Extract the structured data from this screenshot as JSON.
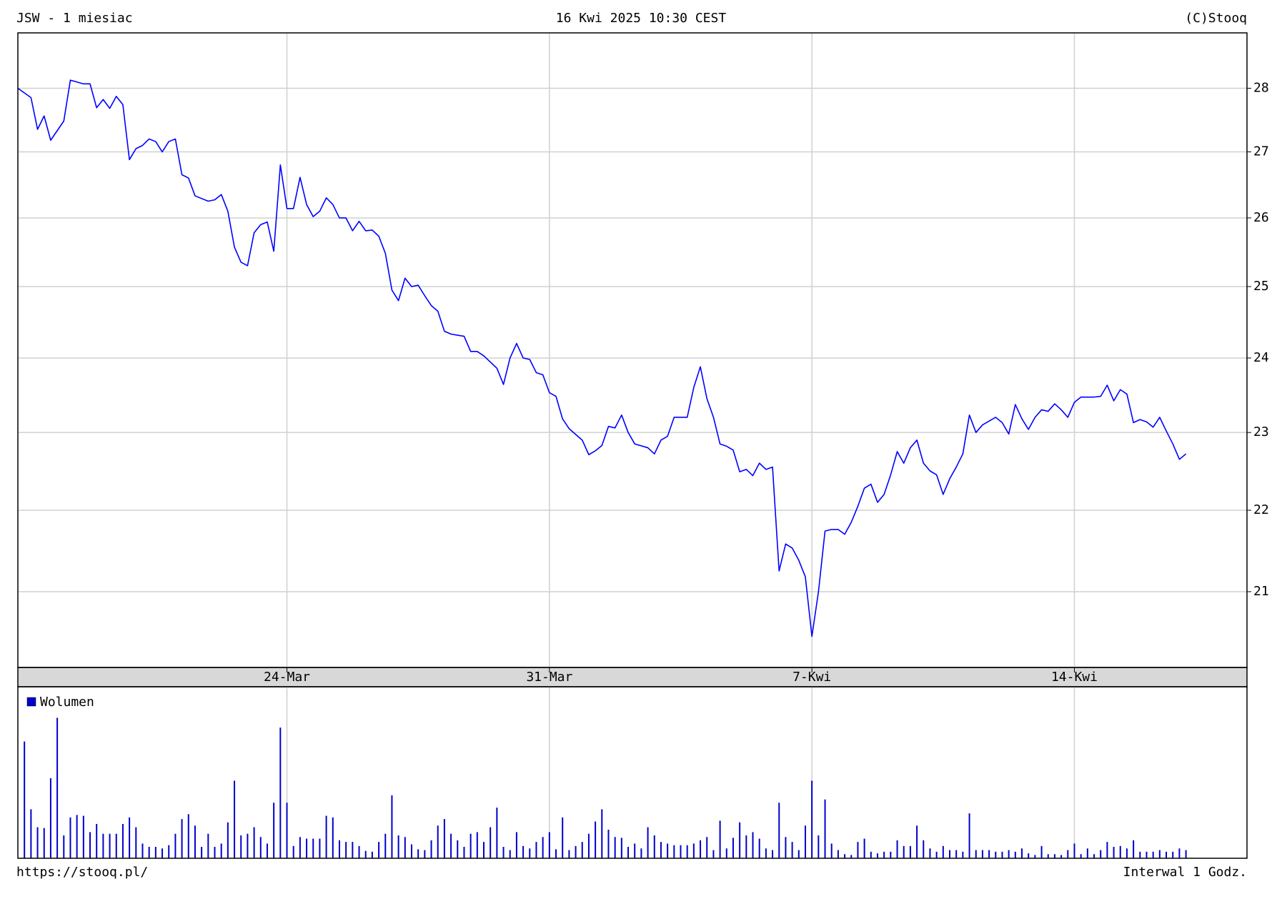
{
  "chart_data": [
    {
      "type": "line",
      "title": "JSW - 1 miesiac",
      "subtitle": "16 Kwi 2025 10:30 CEST",
      "credit": "(C)Stooq",
      "color": "#0000ff",
      "log_scale": true,
      "grid": true,
      "xlim": [
        0,
        187.3
      ],
      "xticks": [
        {
          "value": 41,
          "label": "24-Mar"
        },
        {
          "value": 81,
          "label": "31-Mar"
        },
        {
          "value": 121,
          "label": "7-Kwi"
        },
        {
          "value": 161,
          "label": "14-Kwi"
        }
      ],
      "ylim": [
        20.11,
        28.9
      ],
      "yticks": [
        21,
        22,
        23,
        24,
        25,
        26,
        27,
        28
      ],
      "x": [
        0,
        2,
        3,
        4,
        5,
        7,
        8,
        10,
        11,
        12,
        13,
        14,
        15,
        16,
        17,
        18,
        19,
        20,
        21,
        22,
        23,
        24,
        25,
        26,
        27,
        29,
        30,
        31,
        32,
        33,
        34,
        35,
        36,
        37,
        38,
        39,
        40,
        41,
        42,
        43,
        44,
        45,
        46,
        47,
        48,
        49,
        50,
        51,
        52,
        53,
        54,
        55,
        56,
        57,
        58,
        59,
        60,
        61,
        62,
        63,
        64,
        65,
        66,
        68,
        69,
        70,
        71,
        73,
        74,
        75,
        76,
        77,
        78,
        79,
        80,
        81,
        82,
        83,
        84,
        86,
        87,
        88,
        89,
        90,
        91,
        92,
        93,
        94,
        96,
        97,
        98,
        99,
        100,
        102,
        103,
        104,
        105,
        106,
        107,
        108,
        109,
        110,
        111,
        112,
        113,
        114,
        115,
        116,
        117,
        118,
        119,
        120,
        121,
        122,
        123,
        124,
        125,
        126,
        127,
        128,
        129,
        130,
        131,
        132,
        133,
        134,
        135,
        136,
        137,
        138,
        139,
        140,
        141,
        142,
        143,
        144,
        145,
        146,
        147,
        149,
        150,
        151,
        152,
        153,
        154,
        155,
        156,
        157,
        158,
        159,
        160,
        161,
        162,
        164,
        165,
        166,
        167,
        168,
        169,
        170,
        171,
        172,
        173,
        174,
        175,
        176,
        177,
        178
      ],
      "values": [
        28.0,
        27.85,
        27.35,
        27.56,
        27.18,
        27.48,
        28.13,
        28.07,
        28.07,
        27.69,
        27.82,
        27.68,
        27.87,
        27.74,
        26.88,
        27.05,
        27.1,
        27.2,
        27.16,
        27.0,
        27.16,
        27.2,
        26.65,
        26.6,
        26.33,
        26.25,
        26.27,
        26.35,
        26.1,
        25.57,
        25.35,
        25.3,
        25.78,
        25.9,
        25.94,
        25.51,
        26.8,
        26.14,
        26.14,
        26.61,
        26.2,
        26.02,
        26.1,
        26.3,
        26.2,
        26.0,
        26.0,
        25.81,
        25.95,
        25.81,
        25.82,
        25.73,
        25.48,
        24.95,
        24.8,
        25.12,
        25.0,
        25.02,
        24.87,
        24.73,
        24.65,
        24.37,
        24.33,
        24.3,
        24.09,
        24.09,
        24.03,
        23.86,
        23.64,
        24.0,
        24.2,
        24.0,
        23.98,
        23.8,
        23.77,
        23.53,
        23.48,
        23.18,
        23.05,
        22.9,
        22.71,
        22.76,
        22.83,
        23.08,
        23.06,
        23.23,
        23.0,
        22.85,
        22.8,
        22.72,
        22.9,
        22.95,
        23.2,
        23.2,
        23.6,
        23.88,
        23.45,
        23.2,
        22.85,
        22.82,
        22.77,
        22.49,
        22.52,
        22.44,
        22.6,
        22.52,
        22.55,
        21.25,
        21.58,
        21.53,
        21.38,
        21.18,
        20.47,
        21.0,
        21.74,
        21.76,
        21.76,
        21.7,
        21.85,
        22.05,
        22.28,
        22.33,
        22.1,
        22.2,
        22.45,
        22.75,
        22.6,
        22.8,
        22.9,
        22.6,
        22.5,
        22.45,
        22.2,
        22.4,
        22.55,
        22.72,
        23.23,
        23.0,
        23.1,
        23.2,
        23.13,
        22.98,
        23.37,
        23.18,
        23.04,
        23.2,
        23.3,
        23.28,
        23.38,
        23.3,
        23.2,
        23.4,
        23.47,
        23.47,
        23.48,
        23.63,
        23.42,
        23.57,
        23.51,
        23.13,
        23.17,
        23.14,
        23.07,
        23.2,
        23.02,
        22.85,
        22.65,
        22.72
      ]
    },
    {
      "type": "bar",
      "xlim": [
        0,
        187.3
      ],
      "ylim": [
        0,
        210
      ],
      "x": [
        1,
        2,
        3,
        4,
        5,
        6,
        7,
        8,
        9,
        10,
        11,
        12,
        13,
        14,
        15,
        16,
        17,
        18,
        19,
        20,
        21,
        22,
        23,
        24,
        25,
        26,
        27,
        28,
        29,
        30,
        31,
        32,
        33,
        34,
        35,
        36,
        37,
        38,
        39,
        40,
        41,
        42,
        43,
        44,
        45,
        46,
        47,
        48,
        49,
        50,
        51,
        52,
        53,
        54,
        55,
        56,
        57,
        58,
        59,
        60,
        61,
        62,
        63,
        64,
        65,
        66,
        67,
        68,
        69,
        70,
        71,
        72,
        73,
        74,
        75,
        76,
        77,
        78,
        79,
        80,
        81,
        82,
        83,
        84,
        85,
        86,
        87,
        88,
        89,
        90,
        91,
        92,
        93,
        94,
        95,
        96,
        97,
        98,
        99,
        100,
        101,
        102,
        103,
        104,
        105,
        106,
        107,
        108,
        109,
        110,
        111,
        112,
        113,
        114,
        115,
        116,
        117,
        118,
        119,
        120,
        121,
        122,
        123,
        124,
        125,
        126,
        127,
        128,
        129,
        130,
        131,
        132,
        133,
        134,
        135,
        136,
        137,
        138,
        139,
        140,
        141,
        142,
        143,
        144,
        145,
        146,
        147,
        148,
        149,
        150,
        151,
        152,
        153,
        154,
        155,
        156,
        157,
        158,
        159,
        160,
        161,
        162,
        163,
        164,
        165,
        166,
        167,
        168,
        169,
        170,
        171,
        172,
        173,
        174,
        175,
        176,
        177,
        178
      ],
      "series": [
        {
          "name": "Wolumen",
          "color": "#0000cc",
          "values": [
            143,
            60,
            38,
            37,
            98,
            172,
            28,
            50,
            53,
            52,
            32,
            42,
            30,
            30,
            30,
            42,
            50,
            38,
            18,
            14,
            14,
            12,
            16,
            30,
            48,
            54,
            40,
            14,
            30,
            14,
            18,
            44,
            95,
            28,
            30,
            38,
            26,
            18,
            68,
            160,
            68,
            15,
            26,
            24,
            24,
            24,
            52,
            50,
            22,
            20,
            20,
            15,
            9,
            8,
            20,
            30,
            77,
            28,
            26,
            17,
            11,
            10,
            22,
            40,
            48,
            30,
            22,
            14,
            30,
            32,
            20,
            38,
            62,
            14,
            10,
            32,
            15,
            12,
            20,
            26,
            32,
            11,
            50,
            10,
            15,
            20,
            30,
            45,
            60,
            35,
            26,
            25,
            14,
            18,
            12,
            38,
            28,
            20,
            18,
            16,
            16,
            16,
            18,
            22,
            26,
            10,
            46,
            12,
            25,
            44,
            28,
            32,
            24,
            12,
            10,
            68,
            26,
            20,
            10,
            40,
            95,
            28,
            72,
            18,
            10,
            5,
            4,
            20,
            24,
            8,
            6,
            8,
            8,
            22,
            15,
            15,
            40,
            22,
            12,
            8,
            15,
            10,
            10,
            8,
            55,
            10,
            10,
            10,
            8,
            8,
            10,
            8,
            12,
            6,
            4,
            15,
            5,
            5,
            4,
            10,
            18,
            5,
            12,
            5,
            10,
            20,
            14,
            15,
            12,
            22,
            8,
            8,
            8,
            10,
            8,
            8,
            12,
            10
          ]
        }
      ]
    }
  ],
  "footer": {
    "url": "https://stooq.pl/",
    "interval": "Interwal 1 Godz."
  }
}
